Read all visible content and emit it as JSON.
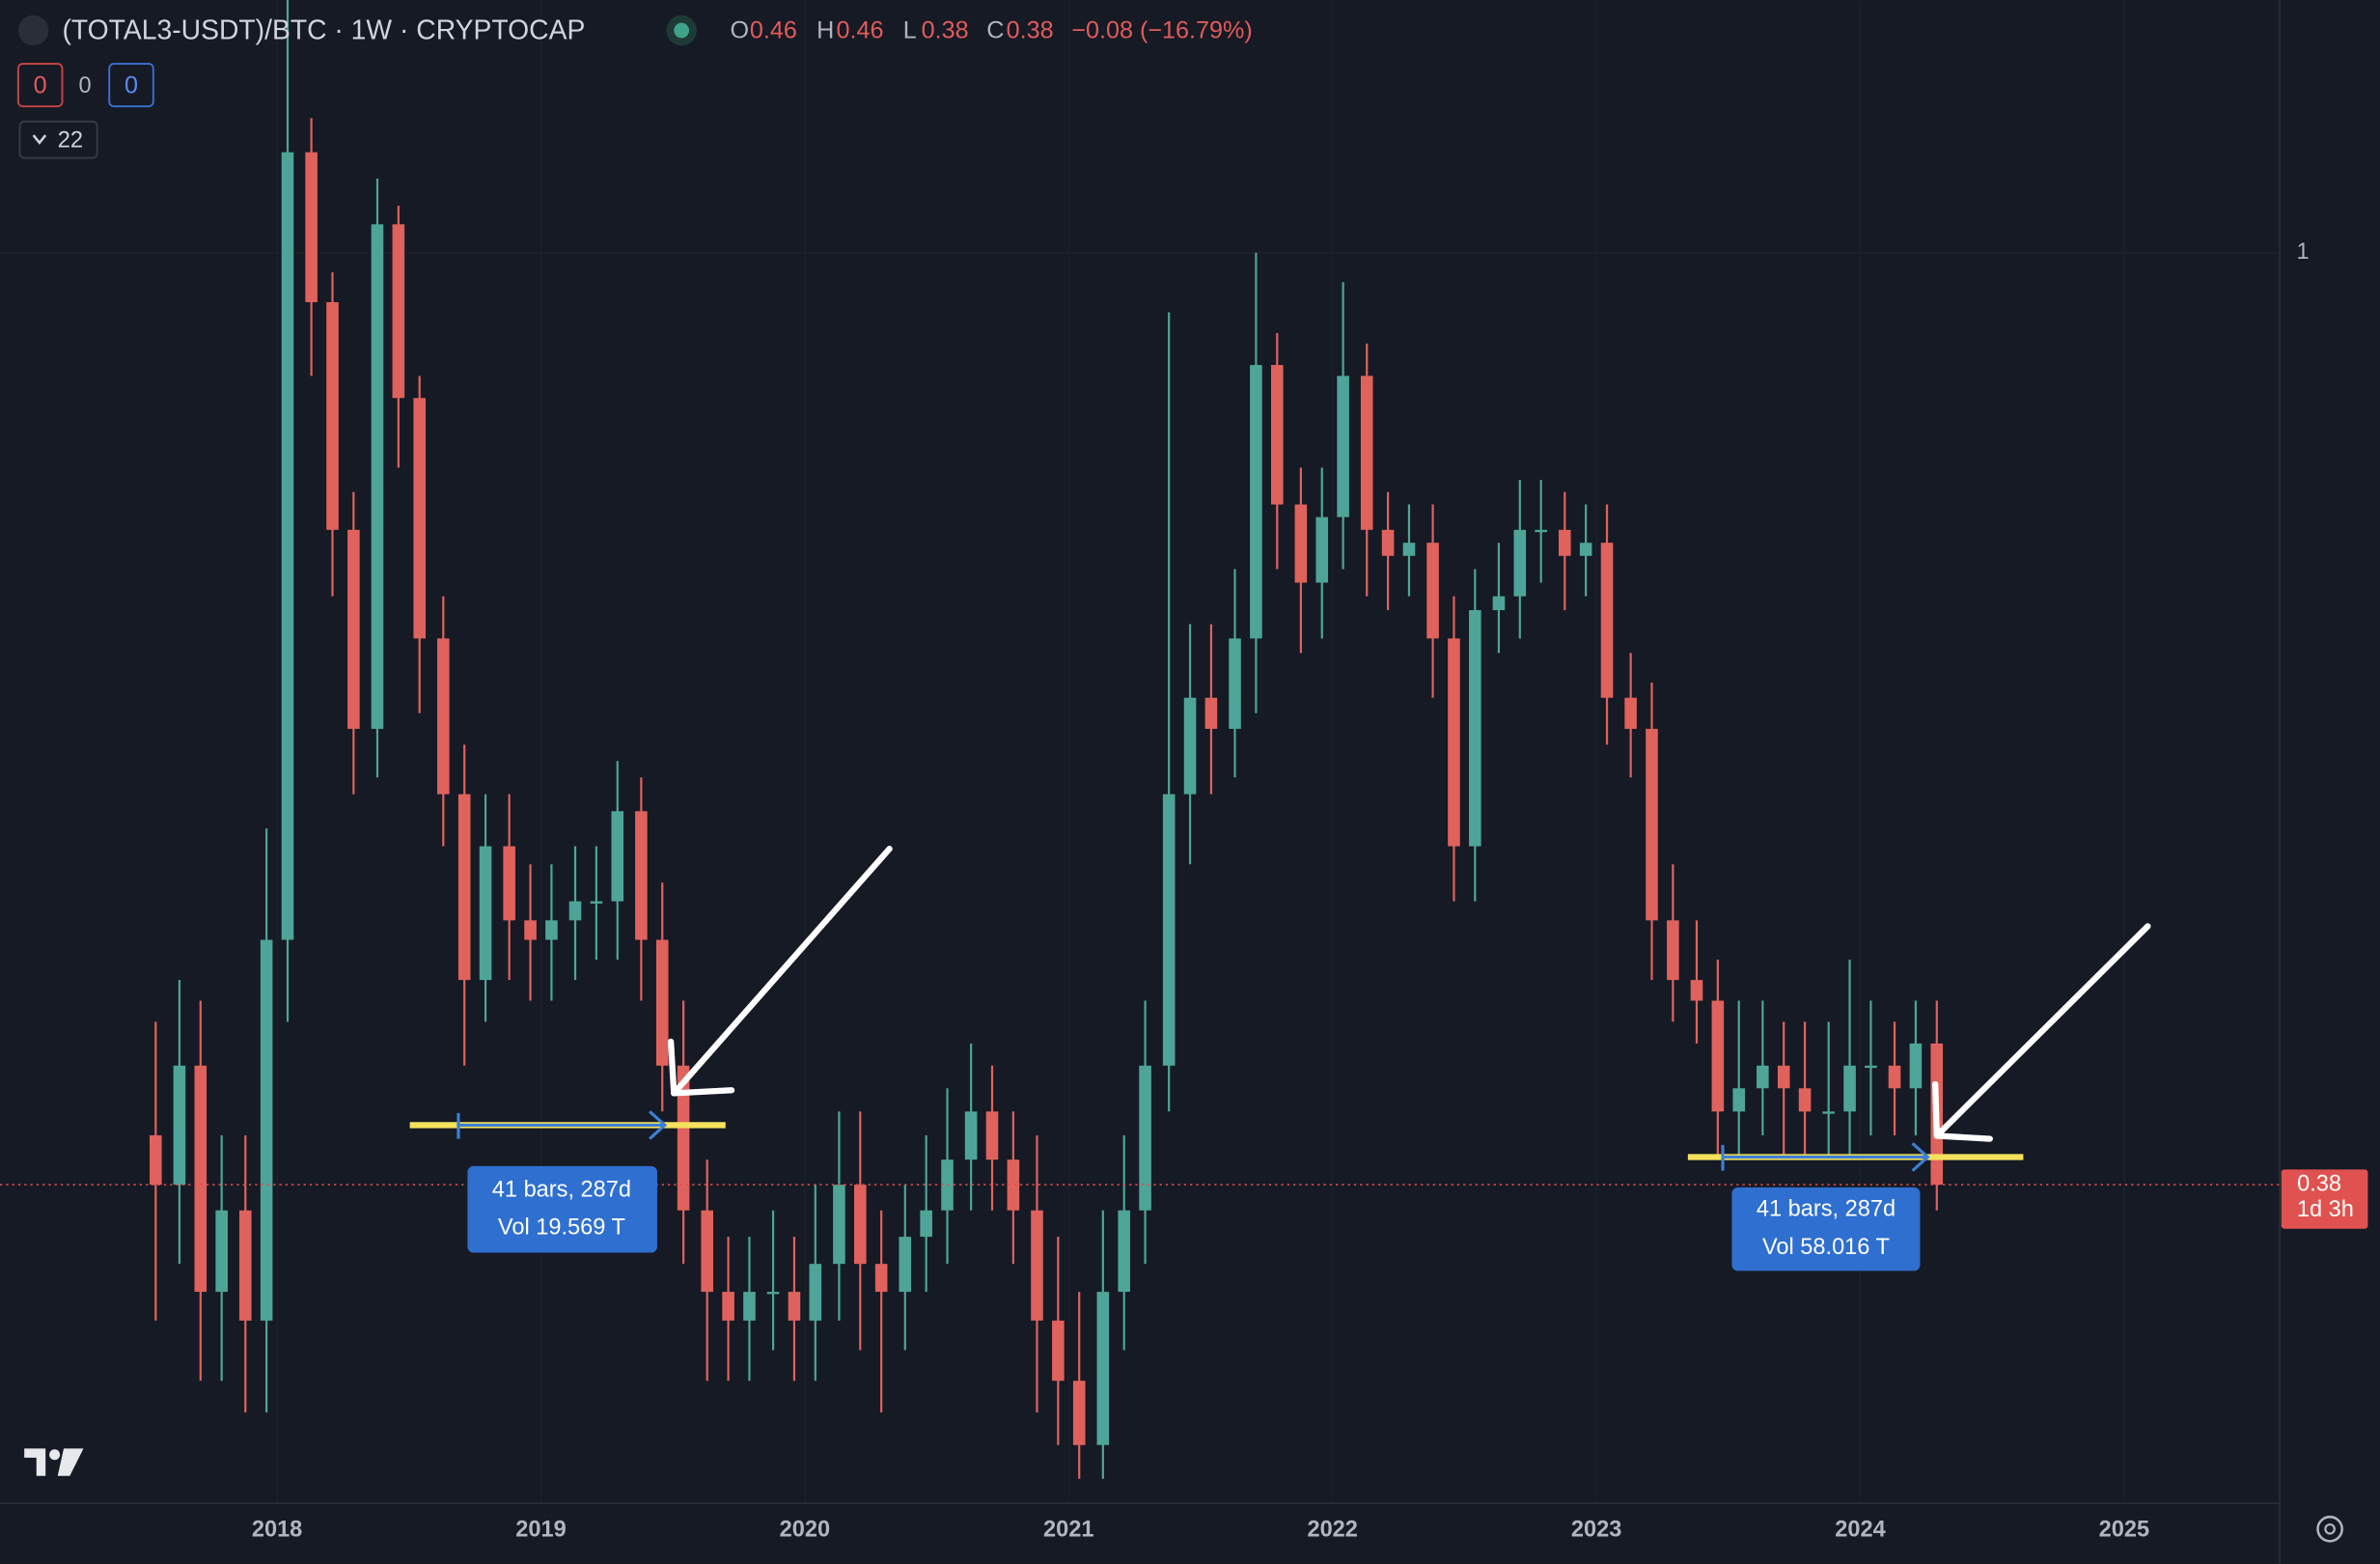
{
  "header": {
    "symbol": "(TOTAL3-USDT)/BTC · 1W · CRYPTOCAP",
    "o_label": "O",
    "o": 0.46,
    "h_label": "H",
    "h": 0.46,
    "l_label": "L",
    "l": 0.38,
    "c_label": "C",
    "c": 0.38,
    "change": "−0.08 (−16.79%)",
    "badge_red": 0,
    "badge_plain": 0,
    "badge_blue": 0,
    "indicator_count": 22
  },
  "measures": [
    {
      "bars": "41 bars, 287d",
      "volume": "Vol 19.569 T"
    },
    {
      "bars": "41 bars, 287d",
      "volume": "Vol 58.016 T"
    }
  ],
  "chart_data": {
    "type": "candlestick",
    "log_scale": true,
    "up_color": "#4ea597",
    "down_color": "#e0625d",
    "xlim": [
      2016.95,
      2025.59
    ],
    "xticks": [
      2018,
      2019,
      2020,
      2021,
      2022,
      2023,
      2024,
      2025
    ],
    "ylim": [
      0.273,
      1.3
    ],
    "yticks": [
      1
    ],
    "last_price": 0.38,
    "countdown": "1d 3h",
    "x": [
      2017.54,
      2017.63,
      2017.71,
      2017.79,
      2017.88,
      2017.96,
      2018.04,
      2018.13,
      2018.21,
      2018.29,
      2018.38,
      2018.46,
      2018.54,
      2018.63,
      2018.71,
      2018.79,
      2018.88,
      2018.96,
      2019.04,
      2019.13,
      2019.21,
      2019.29,
      2019.38,
      2019.46,
      2019.54,
      2019.63,
      2019.71,
      2019.79,
      2019.88,
      2019.96,
      2020.04,
      2020.13,
      2020.21,
      2020.29,
      2020.38,
      2020.46,
      2020.54,
      2020.63,
      2020.71,
      2020.79,
      2020.88,
      2020.96,
      2021.04,
      2021.13,
      2021.21,
      2021.29,
      2021.38,
      2021.46,
      2021.54,
      2021.63,
      2021.71,
      2021.79,
      2021.88,
      2021.96,
      2022.04,
      2022.13,
      2022.21,
      2022.29,
      2022.38,
      2022.46,
      2022.54,
      2022.63,
      2022.71,
      2022.79,
      2022.88,
      2022.96,
      2023.04,
      2023.13,
      2023.21,
      2023.29,
      2023.38,
      2023.46,
      2023.54,
      2023.63,
      2023.71,
      2023.79,
      2023.88,
      2023.96,
      2024.04,
      2024.13,
      2024.21,
      2024.29
    ],
    "open": [
      0.4,
      0.38,
      0.43,
      0.34,
      0.37,
      0.33,
      0.49,
      1.11,
      0.95,
      0.75,
      0.61,
      1.03,
      0.86,
      0.67,
      0.57,
      0.47,
      0.54,
      0.5,
      0.49,
      0.5,
      0.51,
      0.51,
      0.56,
      0.49,
      0.43,
      0.37,
      0.34,
      0.33,
      0.34,
      0.34,
      0.33,
      0.35,
      0.38,
      0.35,
      0.34,
      0.36,
      0.37,
      0.39,
      0.41,
      0.39,
      0.37,
      0.33,
      0.31,
      0.29,
      0.34,
      0.37,
      0.43,
      0.57,
      0.63,
      0.61,
      0.67,
      0.89,
      0.77,
      0.71,
      0.76,
      0.88,
      0.75,
      0.73,
      0.74,
      0.67,
      0.54,
      0.69,
      0.7,
      0.75,
      0.75,
      0.73,
      0.74,
      0.63,
      0.61,
      0.5,
      0.47,
      0.46,
      0.41,
      0.42,
      0.43,
      0.42,
      0.41,
      0.41,
      0.43,
      0.43,
      0.42,
      0.44
    ],
    "high": [
      0.45,
      0.47,
      0.46,
      0.4,
      0.4,
      0.55,
      1.3,
      1.15,
      0.98,
      0.78,
      1.08,
      1.05,
      0.88,
      0.7,
      0.6,
      0.57,
      0.57,
      0.53,
      0.53,
      0.54,
      0.54,
      0.59,
      0.58,
      0.52,
      0.46,
      0.39,
      0.36,
      0.36,
      0.37,
      0.36,
      0.38,
      0.41,
      0.41,
      0.37,
      0.38,
      0.4,
      0.42,
      0.44,
      0.43,
      0.41,
      0.4,
      0.36,
      0.34,
      0.37,
      0.4,
      0.46,
      0.94,
      0.68,
      0.68,
      0.72,
      1.0,
      0.92,
      0.8,
      0.8,
      0.97,
      0.91,
      0.78,
      0.77,
      0.77,
      0.7,
      0.72,
      0.74,
      0.79,
      0.79,
      0.78,
      0.77,
      0.77,
      0.66,
      0.64,
      0.53,
      0.5,
      0.48,
      0.46,
      0.46,
      0.45,
      0.45,
      0.45,
      0.48,
      0.46,
      0.45,
      0.46,
      0.46
    ],
    "low": [
      0.33,
      0.35,
      0.31,
      0.31,
      0.3,
      0.3,
      0.45,
      0.88,
      0.7,
      0.57,
      0.58,
      0.8,
      0.62,
      0.54,
      0.43,
      0.45,
      0.47,
      0.46,
      0.46,
      0.47,
      0.48,
      0.48,
      0.46,
      0.41,
      0.35,
      0.31,
      0.31,
      0.31,
      0.32,
      0.31,
      0.31,
      0.33,
      0.32,
      0.3,
      0.32,
      0.34,
      0.35,
      0.37,
      0.37,
      0.35,
      0.3,
      0.29,
      0.28,
      0.28,
      0.32,
      0.35,
      0.41,
      0.53,
      0.57,
      0.58,
      0.62,
      0.72,
      0.66,
      0.67,
      0.72,
      0.7,
      0.69,
      0.7,
      0.63,
      0.51,
      0.51,
      0.66,
      0.67,
      0.71,
      0.69,
      0.7,
      0.6,
      0.58,
      0.47,
      0.45,
      0.44,
      0.39,
      0.39,
      0.4,
      0.39,
      0.39,
      0.39,
      0.39,
      0.4,
      0.4,
      0.4,
      0.37
    ],
    "close": [
      0.38,
      0.43,
      0.34,
      0.37,
      0.33,
      0.49,
      1.11,
      0.95,
      0.75,
      0.61,
      1.03,
      0.86,
      0.67,
      0.57,
      0.47,
      0.54,
      0.5,
      0.49,
      0.5,
      0.51,
      0.51,
      0.56,
      0.49,
      0.43,
      0.37,
      0.34,
      0.33,
      0.34,
      0.34,
      0.33,
      0.35,
      0.38,
      0.35,
      0.34,
      0.36,
      0.37,
      0.39,
      0.41,
      0.39,
      0.37,
      0.33,
      0.31,
      0.29,
      0.34,
      0.37,
      0.43,
      0.57,
      0.63,
      0.61,
      0.67,
      0.89,
      0.77,
      0.71,
      0.76,
      0.88,
      0.75,
      0.73,
      0.74,
      0.67,
      0.54,
      0.69,
      0.7,
      0.75,
      0.75,
      0.73,
      0.74,
      0.63,
      0.61,
      0.5,
      0.47,
      0.46,
      0.41,
      0.42,
      0.43,
      0.42,
      0.41,
      0.41,
      0.43,
      0.43,
      0.42,
      0.44,
      0.38
    ]
  }
}
